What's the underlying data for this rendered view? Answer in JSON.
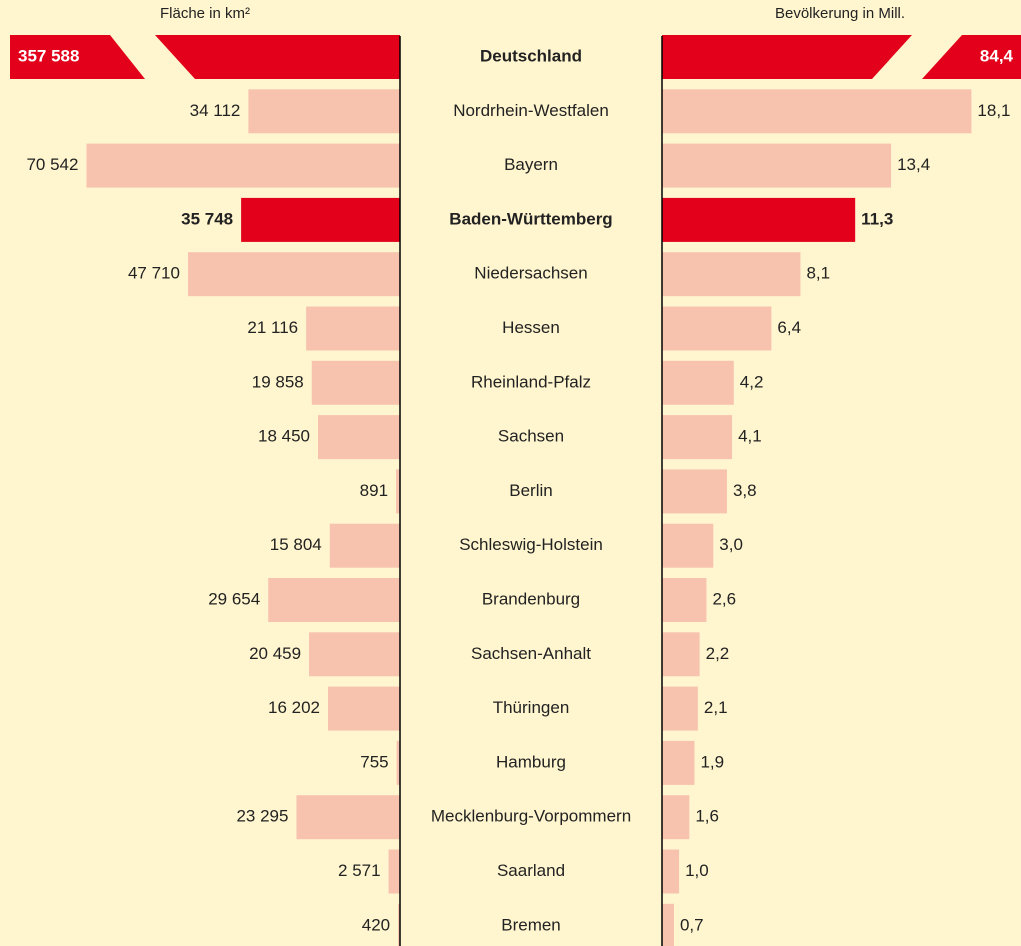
{
  "chart_data": {
    "type": "butterfly-bar",
    "categories": [
      "Deutschland",
      "Nordrhein-Westfalen",
      "Bayern",
      "Baden-Württemberg",
      "Niedersachsen",
      "Hessen",
      "Rheinland-Pfalz",
      "Sachsen",
      "Berlin",
      "Schleswig-Holstein",
      "Brandenburg",
      "Sachsen-Anhalt",
      "Thüringen",
      "Hamburg",
      "Mecklenburg-Vorpommern",
      "Saarland",
      "Bremen"
    ],
    "series": [
      {
        "name": "Fläche in km²",
        "color": "#f8c3ae",
        "side": "left",
        "values": [
          357588,
          34112,
          70542,
          35748,
          47710,
          21116,
          19858,
          18450,
          891,
          15804,
          29654,
          20459,
          16202,
          755,
          23295,
          2571,
          420
        ],
        "value_labels": [
          "357 588",
          "34 112",
          "70 542",
          "35 748",
          "47 710",
          "21 116",
          "19 858",
          "18 450",
          "891",
          "15 804",
          "29 654",
          "20 459",
          "16 202",
          "755",
          "23 295",
          "2 571",
          "420"
        ]
      },
      {
        "name": "Bevölkerung in Mill.",
        "color": "#f8c3ae",
        "side": "right",
        "values": [
          84.4,
          18.1,
          13.4,
          11.3,
          8.1,
          6.4,
          4.2,
          4.1,
          3.8,
          3.0,
          2.6,
          2.2,
          2.1,
          1.9,
          1.6,
          1.0,
          0.7
        ],
        "value_labels": [
          "84,4",
          "18,1",
          "13,4",
          "11,3",
          "8,1",
          "6,4",
          "4,2",
          "4,1",
          "3,8",
          "3,0",
          "2,6",
          "2,2",
          "2,1",
          "1,9",
          "1,6",
          "1,0",
          "0,7"
        ]
      }
    ],
    "xlim": [
      0,
      90000
    ],
    "x2lim": [
      0,
      21
    ],
    "highlight": [
      0,
      3
    ],
    "highlight_color": "#e2001a"
  }
}
